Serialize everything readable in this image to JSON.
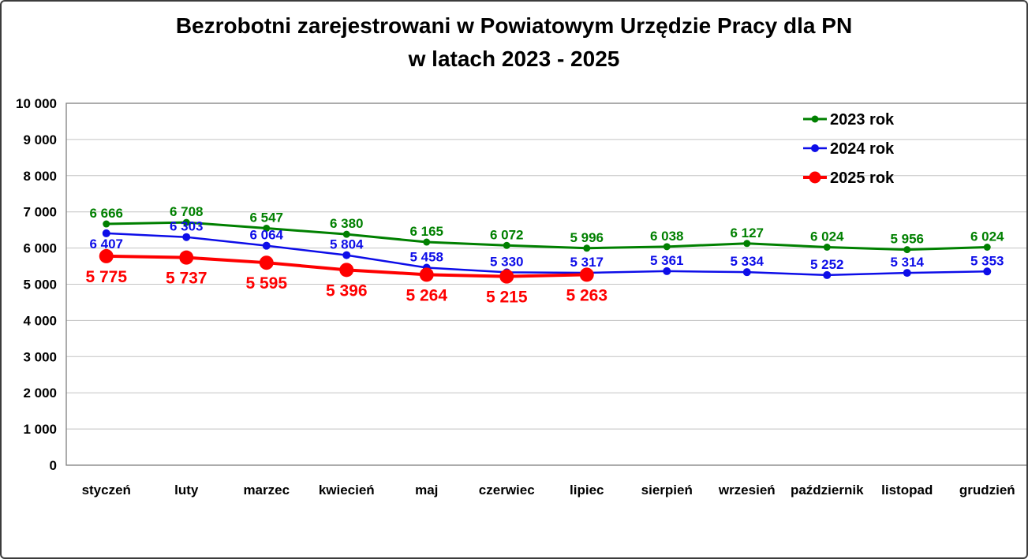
{
  "title": {
    "line1": "Bezrobotni zarejestrowani w Powiatowym Urzędzie Pracy dla PN",
    "line2": "w latach 2023 - 2025"
  },
  "colors": {
    "series_2023": "#008000",
    "series_2024": "#0d0de8",
    "series_2025": "#fe0000",
    "gridline": "#c3c3c3",
    "plot_border": "#7f7f7f",
    "axis_text": "#000000",
    "frame_border": "#3c3c3c"
  },
  "chart_data": {
    "type": "line",
    "title": "Bezrobotni zarejestrowani w Powiatowym Urzędzie Pracy dla PN w latach 2023 - 2025",
    "xlabel": "",
    "ylabel": "",
    "ylim": [
      0,
      10000
    ],
    "ytick_step": 1000,
    "grid": true,
    "legend_position": "top-right",
    "categories": [
      "styczeń",
      "luty",
      "marzec",
      "kwiecień",
      "maj",
      "czerwiec",
      "lipiec",
      "sierpień",
      "wrzesień",
      "październik",
      "listopad",
      "grudzień"
    ],
    "ytick_labels": [
      "0",
      "1 000",
      "2 000",
      "3 000",
      "4 000",
      "5 000",
      "6 000",
      "7 000",
      "8 000",
      "9 000",
      "10 000"
    ],
    "series": [
      {
        "name": "2023 rok",
        "color": "#008000",
        "line_width": 3,
        "marker_radius": 4.5,
        "label_font_size": 17,
        "values": [
          6666,
          6708,
          6547,
          6380,
          6165,
          6072,
          5996,
          6038,
          6127,
          6024,
          5956,
          6024
        ],
        "labels": [
          "6 666",
          "6 708",
          "6 547",
          "6 380",
          "6 165",
          "6 072",
          "5 996",
          "6 038",
          "6 127",
          "6 024",
          "5 956",
          "6 024"
        ],
        "label_positions": [
          "above",
          "above",
          "above",
          "above",
          "above",
          "above",
          "above",
          "above",
          "above",
          "above",
          "above",
          "above"
        ]
      },
      {
        "name": "2024 rok",
        "color": "#0d0de8",
        "line_width": 2.5,
        "marker_radius": 5,
        "label_font_size": 17,
        "values": [
          6407,
          6303,
          6064,
          5804,
          5458,
          5330,
          5317,
          5361,
          5334,
          5252,
          5314,
          5353
        ],
        "labels": [
          "6 407",
          "6 303",
          "6 064",
          "5 804",
          "5 458",
          "5 330",
          "5 317",
          "5 361",
          "5 334",
          "5 252",
          "5 314",
          "5 353"
        ],
        "label_positions": [
          "below",
          "above",
          "above",
          "above",
          "above",
          "above",
          "above",
          "above",
          "above",
          "above",
          "above",
          "above"
        ]
      },
      {
        "name": "2025 rok",
        "color": "#fe0000",
        "line_width": 4,
        "marker_radius": 9,
        "label_font_size": 21,
        "values": [
          5775,
          5737,
          5595,
          5396,
          5264,
          5215,
          5263
        ],
        "labels": [
          "5 775",
          "5 737",
          "5 595",
          "5 396",
          "5 264",
          "5 215",
          "5 263"
        ],
        "label_positions": [
          "below",
          "below",
          "below",
          "below",
          "below",
          "below",
          "below"
        ]
      }
    ]
  }
}
